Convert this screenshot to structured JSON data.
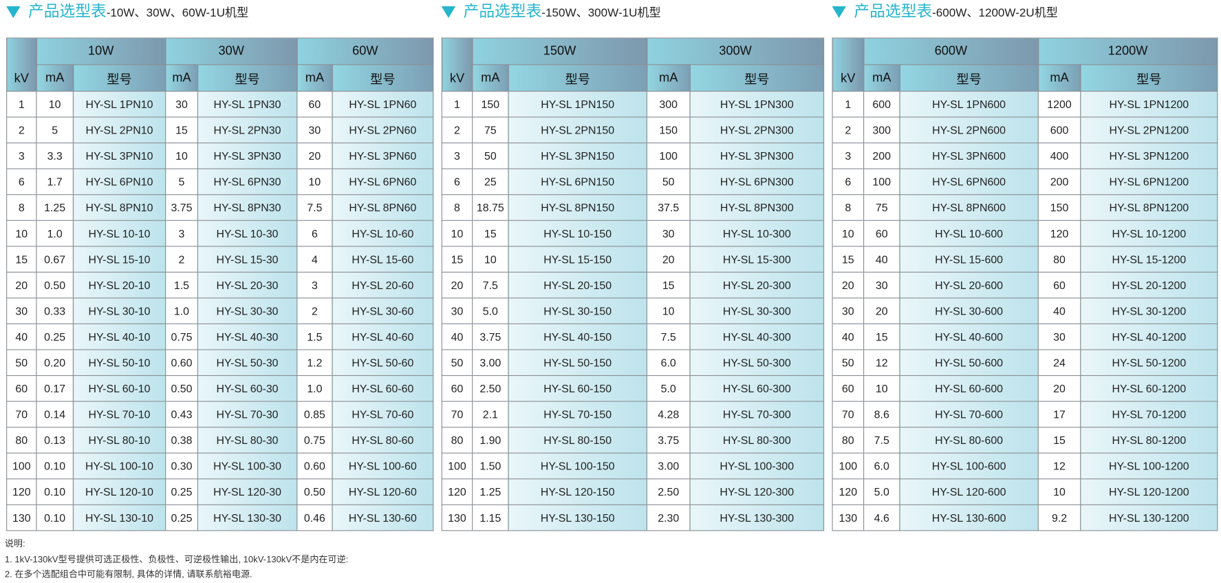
{
  "tables": [
    {
      "title": "产品选型表",
      "subtitle": "-10W、30W、60W-1U机型",
      "groups": [
        "10W",
        "30W",
        "60W"
      ],
      "columns": [
        "kV",
        "mA",
        "型号",
        "mA",
        "型号",
        "mA",
        "型号"
      ],
      "rows": [
        [
          "1",
          "10",
          "HY-SL 1PN10",
          "30",
          "HY-SL 1PN30",
          "60",
          "HY-SL 1PN60"
        ],
        [
          "2",
          "5",
          "HY-SL 2PN10",
          "15",
          "HY-SL 2PN30",
          "30",
          "HY-SL 2PN60"
        ],
        [
          "3",
          "3.3",
          "HY-SL 3PN10",
          "10",
          "HY-SL 3PN30",
          "20",
          "HY-SL 3PN60"
        ],
        [
          "6",
          "1.7",
          "HY-SL 6PN10",
          "5",
          "HY-SL 6PN30",
          "10",
          "HY-SL 6PN60"
        ],
        [
          "8",
          "1.25",
          "HY-SL 8PN10",
          "3.75",
          "HY-SL 8PN30",
          "7.5",
          "HY-SL 8PN60"
        ],
        [
          "10",
          "1.0",
          "HY-SL 10-10",
          "3",
          "HY-SL 10-30",
          "6",
          "HY-SL 10-60"
        ],
        [
          "15",
          "0.67",
          "HY-SL 15-10",
          "2",
          "HY-SL 15-30",
          "4",
          "HY-SL 15-60"
        ],
        [
          "20",
          "0.50",
          "HY-SL 20-10",
          "1.5",
          "HY-SL 20-30",
          "3",
          "HY-SL 20-60"
        ],
        [
          "30",
          "0.33",
          "HY-SL 30-10",
          "1.0",
          "HY-SL 30-30",
          "2",
          "HY-SL 30-60"
        ],
        [
          "40",
          "0.25",
          "HY-SL 40-10",
          "0.75",
          "HY-SL 40-30",
          "1.5",
          "HY-SL 40-60"
        ],
        [
          "50",
          "0.20",
          "HY-SL 50-10",
          "0.60",
          "HY-SL 50-30",
          "1.2",
          "HY-SL 50-60"
        ],
        [
          "60",
          "0.17",
          "HY-SL 60-10",
          "0.50",
          "HY-SL 60-30",
          "1.0",
          "HY-SL 60-60"
        ],
        [
          "70",
          "0.14",
          "HY-SL 70-10",
          "0.43",
          "HY-SL 70-30",
          "0.85",
          "HY-SL 70-60"
        ],
        [
          "80",
          "0.13",
          "HY-SL 80-10",
          "0.38",
          "HY-SL 80-30",
          "0.75",
          "HY-SL 80-60"
        ],
        [
          "100",
          "0.10",
          "HY-SL 100-10",
          "0.30",
          "HY-SL 100-30",
          "0.60",
          "HY-SL 100-60"
        ],
        [
          "120",
          "0.10",
          "HY-SL 120-10",
          "0.25",
          "HY-SL 120-30",
          "0.50",
          "HY-SL 120-60"
        ],
        [
          "130",
          "0.10",
          "HY-SL 130-10",
          "0.25",
          "HY-SL 130-30",
          "0.46",
          "HY-SL 130-60"
        ]
      ]
    },
    {
      "title": "产品选型表",
      "subtitle": "-150W、300W-1U机型",
      "groups": [
        "150W",
        "300W"
      ],
      "columns": [
        "kV",
        "mA",
        "型号",
        "mA",
        "型号"
      ],
      "rows": [
        [
          "1",
          "150",
          "HY-SL 1PN150",
          "300",
          "HY-SL 1PN300"
        ],
        [
          "2",
          "75",
          "HY-SL 2PN150",
          "150",
          "HY-SL 2PN300"
        ],
        [
          "3",
          "50",
          "HY-SL 3PN150",
          "100",
          "HY-SL 3PN300"
        ],
        [
          "6",
          "25",
          "HY-SL 6PN150",
          "50",
          "HY-SL 6PN300"
        ],
        [
          "8",
          "18.75",
          "HY-SL 8PN150",
          "37.5",
          "HY-SL 8PN300"
        ],
        [
          "10",
          "15",
          "HY-SL 10-150",
          "30",
          "HY-SL 10-300"
        ],
        [
          "15",
          "10",
          "HY-SL 15-150",
          "20",
          "HY-SL 15-300"
        ],
        [
          "20",
          "7.5",
          "HY-SL 20-150",
          "15",
          "HY-SL 20-300"
        ],
        [
          "30",
          "5.0",
          "HY-SL 30-150",
          "10",
          "HY-SL 30-300"
        ],
        [
          "40",
          "3.75",
          "HY-SL 40-150",
          "7.5",
          "HY-SL 40-300"
        ],
        [
          "50",
          "3.00",
          "HY-SL 50-150",
          "6.0",
          "HY-SL 50-300"
        ],
        [
          "60",
          "2.50",
          "HY-SL 60-150",
          "5.0",
          "HY-SL 60-300"
        ],
        [
          "70",
          "2.1",
          "HY-SL 70-150",
          "4.28",
          "HY-SL 70-300"
        ],
        [
          "80",
          "1.90",
          "HY-SL 80-150",
          "3.75",
          "HY-SL 80-300"
        ],
        [
          "100",
          "1.50",
          "HY-SL 100-150",
          "3.00",
          "HY-SL 100-300"
        ],
        [
          "120",
          "1.25",
          "HY-SL 120-150",
          "2.50",
          "HY-SL 120-300"
        ],
        [
          "130",
          "1.15",
          "HY-SL 130-150",
          "2.30",
          "HY-SL 130-300"
        ]
      ]
    },
    {
      "title": "产品选型表",
      "subtitle": "-600W、1200W-2U机型",
      "groups": [
        "600W",
        "1200W"
      ],
      "columns": [
        "kV",
        "mA",
        "型号",
        "mA",
        "型号"
      ],
      "rows": [
        [
          "1",
          "600",
          "HY-SL 1PN600",
          "1200",
          "HY-SL 1PN1200"
        ],
        [
          "2",
          "300",
          "HY-SL 2PN600",
          "600",
          "HY-SL 2PN1200"
        ],
        [
          "3",
          "200",
          "HY-SL 3PN600",
          "400",
          "HY-SL 3PN1200"
        ],
        [
          "6",
          "100",
          "HY-SL 6PN600",
          "200",
          "HY-SL 6PN1200"
        ],
        [
          "8",
          "75",
          "HY-SL 8PN600",
          "150",
          "HY-SL 8PN1200"
        ],
        [
          "10",
          "60",
          "HY-SL 10-600",
          "120",
          "HY-SL 10-1200"
        ],
        [
          "15",
          "40",
          "HY-SL 15-600",
          "80",
          "HY-SL 15-1200"
        ],
        [
          "20",
          "30",
          "HY-SL 20-600",
          "60",
          "HY-SL 20-1200"
        ],
        [
          "30",
          "20",
          "HY-SL 30-600",
          "40",
          "HY-SL 30-1200"
        ],
        [
          "40",
          "15",
          "HY-SL 40-600",
          "30",
          "HY-SL 40-1200"
        ],
        [
          "50",
          "12",
          "HY-SL 50-600",
          "24",
          "HY-SL 50-1200"
        ],
        [
          "60",
          "10",
          "HY-SL 60-600",
          "20",
          "HY-SL 60-1200"
        ],
        [
          "70",
          "8.6",
          "HY-SL 70-600",
          "17",
          "HY-SL 70-1200"
        ],
        [
          "80",
          "7.5",
          "HY-SL 80-600",
          "15",
          "HY-SL 80-1200"
        ],
        [
          "100",
          "6.0",
          "HY-SL 100-600",
          "12",
          "HY-SL 100-1200"
        ],
        [
          "120",
          "5.0",
          "HY-SL 120-600",
          "10",
          "HY-SL 120-1200"
        ],
        [
          "130",
          "4.6",
          "HY-SL 130-600",
          "9.2",
          "HY-SL 130-1200"
        ]
      ]
    }
  ],
  "notes": {
    "heading": "说明:",
    "items": [
      "1. 1kV-130kV型号提供可选正极性、负极性、可逆极性输出, 10kV-130kV不是内在可逆:",
      "2. 在多个选配组合中可能有限制, 具体的详情, 请联系航裕电源."
    ]
  }
}
